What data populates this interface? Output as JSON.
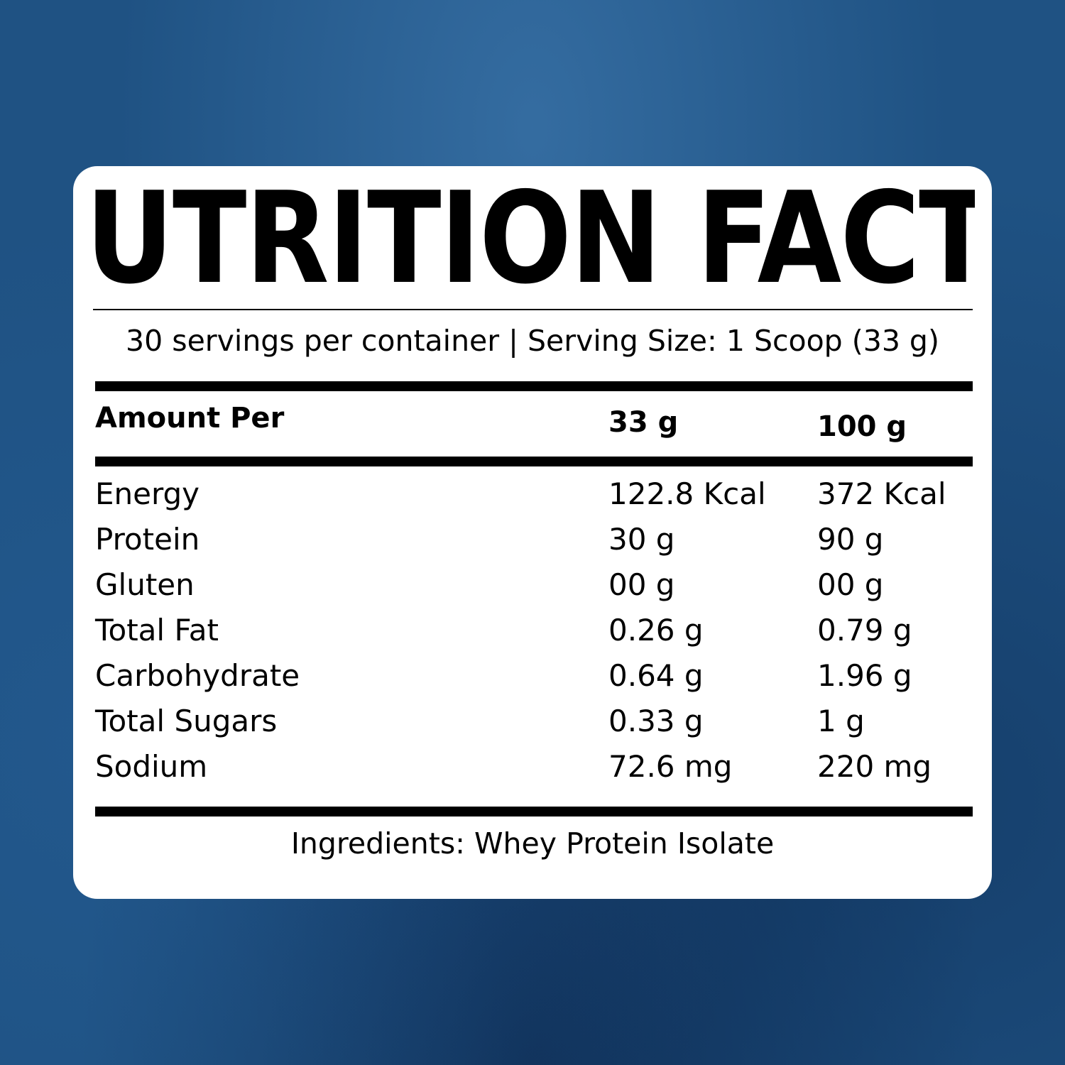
{
  "label": {
    "title": "NUTRITION FACTS",
    "serving_info": "30 servings per container | Serving Size: 1 Scoop (33 g)",
    "header": {
      "amount_per": "Amount Per",
      "col_1": "33 g",
      "col_2": "100 g"
    },
    "rows": [
      {
        "name": "Energy",
        "per_serving": "122.8 Kcal",
        "per_100g": "372 Kcal"
      },
      {
        "name": "Protein",
        "per_serving": "30 g",
        "per_100g": "90 g"
      },
      {
        "name": "Gluten",
        "per_serving": "00 g",
        "per_100g": "00 g"
      },
      {
        "name": "Total Fat",
        "per_serving": "0.26 g",
        "per_100g": "0.79 g"
      },
      {
        "name": "Carbohydrate",
        "per_serving": "0.64 g",
        "per_100g": "1.96 g"
      },
      {
        "name": "Total Sugars",
        "per_serving": "0.33 g",
        "per_100g": "1 g"
      },
      {
        "name": "Sodium",
        "per_serving": "72.6 mg",
        "per_100g": "220 mg"
      }
    ],
    "ingredients": "Ingredients: Whey Protein Isolate"
  },
  "colors": {
    "background": "#1f5283",
    "card": "#ffffff",
    "text": "#000000"
  }
}
